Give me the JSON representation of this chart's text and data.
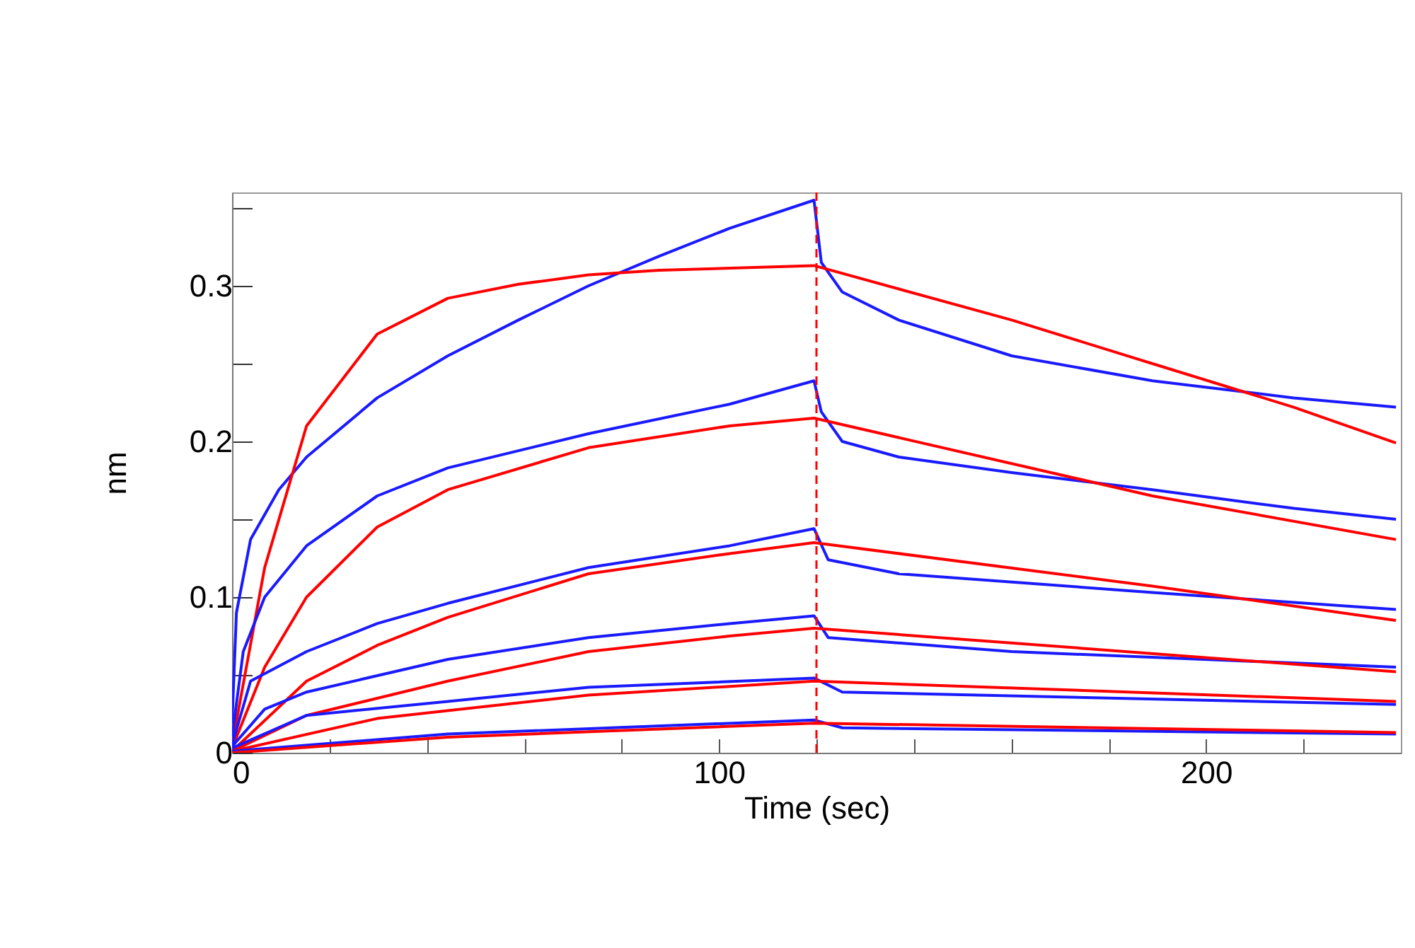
{
  "chart_data": {
    "type": "line",
    "xlabel": "Time (sec)",
    "ylabel": "nm",
    "xlim": [
      0,
      240
    ],
    "ylim": [
      0,
      0.36
    ],
    "xticks": [
      0,
      {
        "value": 20,
        "label": null
      },
      {
        "value": 40,
        "label": null
      },
      {
        "value": 60,
        "label": null
      },
      {
        "value": 80,
        "label": null
      },
      100,
      {
        "value": 120,
        "label": null
      },
      {
        "value": 140,
        "label": null
      },
      {
        "value": 160,
        "label": null
      },
      {
        "value": 180,
        "label": null
      },
      200,
      {
        "value": 220,
        "label": null
      }
    ],
    "yticks": [
      0,
      {
        "value": 0.05,
        "label": null
      },
      0.1,
      {
        "value": 0.15,
        "label": null
      },
      0.2,
      {
        "value": 0.25,
        "label": null
      },
      0.3,
      {
        "value": 0.35,
        "label": null
      }
    ],
    "grid": false,
    "ref_lines": [
      {
        "axis": "x",
        "value": 120,
        "label": null,
        "color": "#ff0000",
        "line_style": "dashed"
      }
    ],
    "series": [
      {
        "color": "#1a1aff",
        "x": [
          0,
          0.9,
          3.8,
          9.6,
          15.3,
          29.8,
          44.3,
          58.8,
          73.2,
          87.7,
          102.2,
          119.5,
          121,
          125.3,
          136.9,
          160.1,
          189,
          218,
          239
        ],
        "values": [
          0.019,
          0.09,
          0.137,
          0.169,
          0.19,
          0.228,
          0.255,
          0.278,
          0.3,
          0.319,
          0.337,
          0.355,
          0.315,
          0.296,
          0.278,
          0.255,
          0.239,
          0.228,
          0.222
        ]
      },
      {
        "color": "#ff0000",
        "x": [
          0,
          6.7,
          15.3,
          29.8,
          44.3,
          58.8,
          73.2,
          87.7,
          119.5,
          160.1,
          189,
          218,
          239
        ],
        "values": [
          0.005,
          0.119,
          0.21,
          0.269,
          0.292,
          0.301,
          0.307,
          0.31,
          0.313,
          0.278,
          0.25,
          0.222,
          0.199
        ]
      },
      {
        "color": "#1a1aff",
        "x": [
          0,
          2.3,
          6.7,
          15.3,
          29.8,
          44.3,
          73.2,
          102.2,
          119.5,
          121,
          125.3,
          136.9,
          160.1,
          189,
          218,
          239
        ],
        "values": [
          0.01,
          0.065,
          0.1,
          0.133,
          0.165,
          0.183,
          0.205,
          0.224,
          0.239,
          0.219,
          0.2,
          0.19,
          0.18,
          0.169,
          0.157,
          0.15
        ]
      },
      {
        "color": "#ff0000",
        "x": [
          0,
          6.7,
          15.3,
          29.8,
          44.3,
          73.2,
          102.2,
          119.5,
          189,
          239
        ],
        "values": [
          0.003,
          0.055,
          0.1,
          0.145,
          0.169,
          0.196,
          0.21,
          0.215,
          0.165,
          0.137
        ]
      },
      {
        "color": "#1a1aff",
        "x": [
          0,
          3.8,
          15.3,
          29.8,
          44.3,
          73.2,
          102.2,
          119.5,
          122.4,
          136.9,
          189,
          239
        ],
        "values": [
          0.005,
          0.046,
          0.065,
          0.083,
          0.096,
          0.119,
          0.133,
          0.144,
          0.124,
          0.115,
          0.103,
          0.092
        ]
      },
      {
        "color": "#ff0000",
        "x": [
          0,
          15.3,
          29.8,
          44.3,
          73.2,
          102.2,
          119.5,
          189,
          239
        ],
        "values": [
          0.001,
          0.046,
          0.069,
          0.087,
          0.115,
          0.128,
          0.135,
          0.107,
          0.085
        ]
      },
      {
        "color": "#1a1aff",
        "x": [
          0,
          6.7,
          15.3,
          44.3,
          73.2,
          102.2,
          119.5,
          122.4,
          160.1,
          239
        ],
        "values": [
          0.004,
          0.028,
          0.039,
          0.06,
          0.074,
          0.083,
          0.088,
          0.074,
          0.065,
          0.055
        ]
      },
      {
        "color": "#ff0000",
        "x": [
          0,
          15.3,
          44.3,
          73.2,
          102.2,
          119.5,
          239
        ],
        "values": [
          0.001,
          0.024,
          0.046,
          0.065,
          0.075,
          0.08,
          0.052
        ]
      },
      {
        "color": "#1a1aff",
        "x": [
          0,
          15.3,
          44.3,
          73.2,
          119.5,
          125.3,
          239
        ],
        "values": [
          0.003,
          0.024,
          0.033,
          0.042,
          0.048,
          0.039,
          0.031
        ]
      },
      {
        "color": "#ff0000",
        "x": [
          0,
          29.8,
          73.2,
          119.5,
          239
        ],
        "values": [
          0.001,
          0.022,
          0.037,
          0.046,
          0.033
        ]
      },
      {
        "color": "#1a1aff",
        "x": [
          0,
          44.3,
          119.5,
          125.3,
          239
        ],
        "values": [
          0.001,
          0.012,
          0.021,
          0.016,
          0.012
        ]
      },
      {
        "color": "#ff0000",
        "x": [
          0,
          44.3,
          119.5,
          239
        ],
        "values": [
          0,
          0.01,
          0.019,
          0.013
        ]
      }
    ]
  }
}
